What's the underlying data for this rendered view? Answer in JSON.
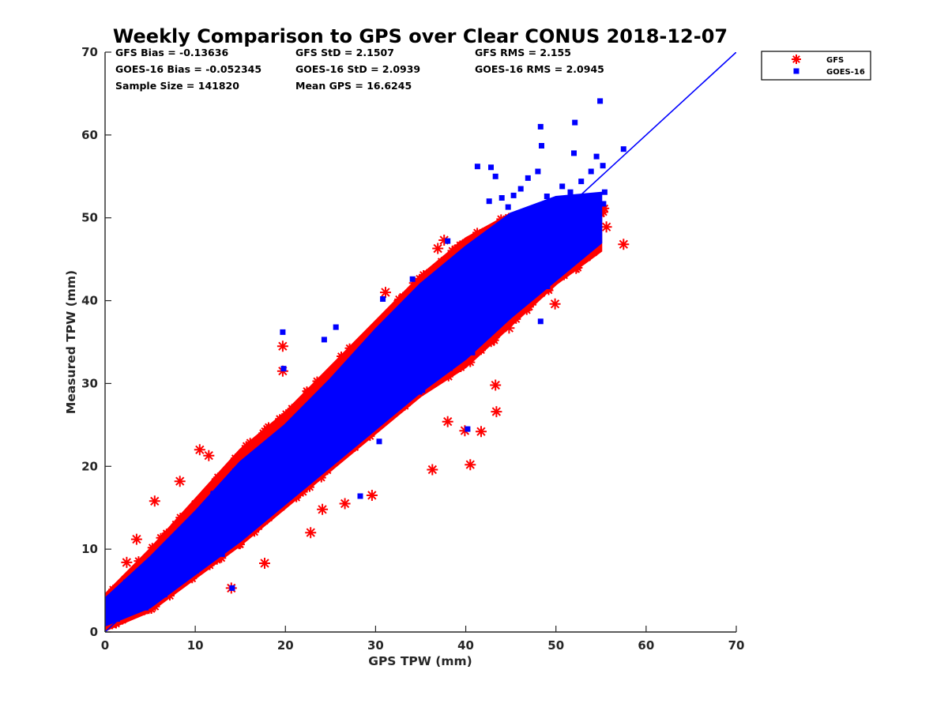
{
  "chart_data": {
    "type": "scatter",
    "title": "Weekly Comparison to GPS over Clear CONUS 2018-12-07",
    "xlabel": "GPS TPW (mm)",
    "ylabel": "Measured TPW (mm)",
    "xlim": [
      0,
      70
    ],
    "ylim": [
      0,
      70
    ],
    "xticks": [
      "0",
      "10",
      "20",
      "30",
      "40",
      "50",
      "60",
      "70"
    ],
    "yticks": [
      "0",
      "10",
      "20",
      "30",
      "40",
      "50",
      "60",
      "70"
    ],
    "grid": false,
    "legend_position": "outside-top-right",
    "stats": [
      [
        "GFS Bias = -0.13636",
        "GFS StD = 2.1507",
        "GFS RMS = 2.155"
      ],
      [
        "GOES-16 Bias = -0.052345",
        "GOES-16 StD = 2.0939",
        "GOES-16 RMS = 2.0945"
      ],
      [
        "Sample Size = 141820",
        "Mean GPS = 16.6245",
        ""
      ]
    ],
    "reference_line": {
      "label": "1:1",
      "x": [
        0,
        70
      ],
      "y": [
        0,
        70
      ],
      "color": "#0000ff"
    },
    "series": [
      {
        "name": "GFS",
        "marker": "asterisk",
        "color": "#ff0000",
        "band": [
          [
            0,
            0.2,
            4.5
          ],
          [
            5,
            2.5,
            10
          ],
          [
            10,
            6.5,
            16
          ],
          [
            15,
            10.5,
            22
          ],
          [
            20,
            15,
            26.5
          ],
          [
            25,
            19.5,
            32
          ],
          [
            30,
            24,
            37.5
          ],
          [
            35,
            28.5,
            43
          ],
          [
            40,
            32,
            47.5
          ],
          [
            45,
            37,
            50.5
          ],
          [
            50,
            42,
            51.5
          ],
          [
            55,
            46,
            51.5
          ]
        ],
        "outliers": [
          [
            0.5,
            3.3
          ],
          [
            1.2,
            2.2
          ],
          [
            2.4,
            8.4
          ],
          [
            3.5,
            11.2
          ],
          [
            5.5,
            15.8
          ],
          [
            8.3,
            18.2
          ],
          [
            10.5,
            22.0
          ],
          [
            11.5,
            21.3
          ],
          [
            14.0,
            5.3
          ],
          [
            17.7,
            8.3
          ],
          [
            19.7,
            34.5
          ],
          [
            19.7,
            31.5
          ],
          [
            22.8,
            12.0
          ],
          [
            24.1,
            14.8
          ],
          [
            26.6,
            15.5
          ],
          [
            29.6,
            16.5
          ],
          [
            31.1,
            41.0
          ],
          [
            36.3,
            19.6
          ],
          [
            37.6,
            47.3
          ],
          [
            36.9,
            46.3
          ],
          [
            39.9,
            24.3
          ],
          [
            41.7,
            24.2
          ],
          [
            43.4,
            26.6
          ],
          [
            43.3,
            29.8
          ],
          [
            44.8,
            36.7
          ],
          [
            49.9,
            39.6
          ],
          [
            52.5,
            45.5
          ],
          [
            54.0,
            46.5
          ],
          [
            54.8,
            51.1
          ],
          [
            55.6,
            48.9
          ],
          [
            57.5,
            46.8
          ],
          [
            40.5,
            20.2
          ],
          [
            38.0,
            25.4
          ]
        ]
      },
      {
        "name": "GOES-16",
        "marker": "square",
        "color": "#0000ff",
        "band": [
          [
            0,
            0.8,
            4.0
          ],
          [
            5,
            3.0,
            9.0
          ],
          [
            10,
            7.0,
            14.5
          ],
          [
            15,
            11.0,
            20.5
          ],
          [
            20,
            15.5,
            25.0
          ],
          [
            25,
            20.0,
            30.5
          ],
          [
            30,
            24.5,
            36.5
          ],
          [
            35,
            29.0,
            42.0
          ],
          [
            40,
            33.0,
            46.5
          ],
          [
            45,
            38.0,
            50.5
          ],
          [
            50,
            42.5,
            52.5
          ],
          [
            55,
            47.0,
            53.0
          ]
        ],
        "outliers": [
          [
            14.1,
            5.3
          ],
          [
            19.7,
            36.2
          ],
          [
            19.8,
            31.8
          ],
          [
            22.1,
            22.0
          ],
          [
            24.3,
            35.3
          ],
          [
            25.6,
            36.8
          ],
          [
            30.8,
            40.2
          ],
          [
            34.1,
            42.6
          ],
          [
            38.0,
            47.2
          ],
          [
            40.2,
            24.5
          ],
          [
            42.8,
            56.1
          ],
          [
            43.3,
            55.0
          ],
          [
            44.0,
            52.4
          ],
          [
            44.7,
            51.3
          ],
          [
            45.3,
            52.7
          ],
          [
            46.1,
            53.5
          ],
          [
            46.9,
            54.8
          ],
          [
            48.0,
            55.6
          ],
          [
            48.3,
            61.0
          ],
          [
            48.4,
            58.7
          ],
          [
            49.0,
            52.6
          ],
          [
            50.7,
            53.8
          ],
          [
            51.6,
            53.1
          ],
          [
            52.0,
            57.8
          ],
          [
            52.1,
            61.5
          ],
          [
            52.8,
            54.4
          ],
          [
            53.9,
            55.6
          ],
          [
            54.5,
            57.4
          ],
          [
            54.9,
            64.1
          ],
          [
            55.2,
            56.3
          ],
          [
            57.5,
            58.3
          ],
          [
            55.4,
            53.1
          ],
          [
            41.3,
            56.2
          ],
          [
            42.6,
            52.0
          ],
          [
            46.0,
            39.6
          ],
          [
            48.3,
            37.5
          ],
          [
            30.4,
            23.0
          ],
          [
            28.3,
            16.4
          ]
        ]
      }
    ]
  }
}
